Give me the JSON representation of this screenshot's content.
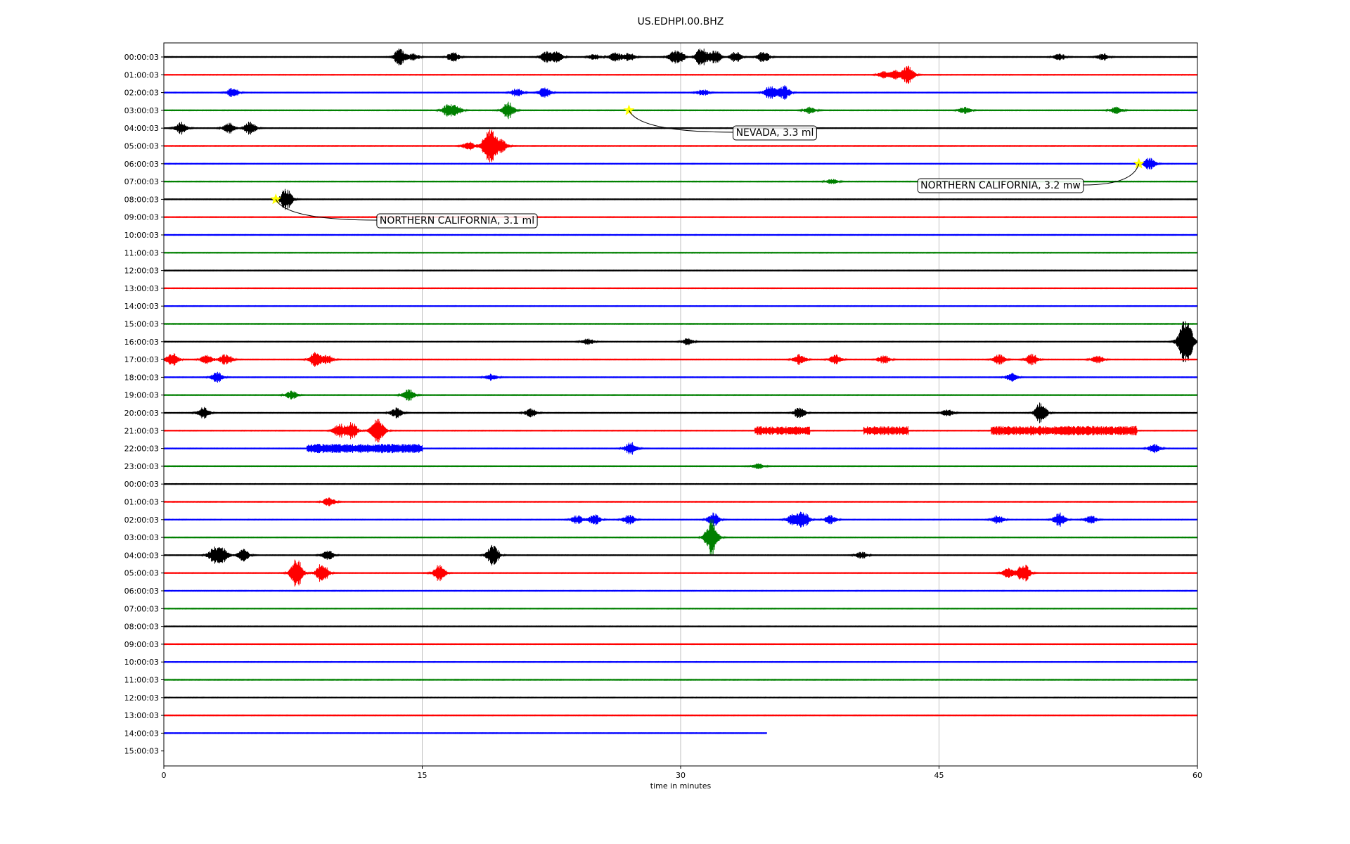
{
  "chart_data": {
    "type": "line",
    "title": "US.EDHPI.00.BHZ",
    "xlabel": "time in minutes",
    "ylabel": "",
    "xlim": [
      0,
      60
    ],
    "xticks": [
      0,
      15,
      30,
      45,
      60
    ],
    "grid": "vertical lines at 15, 30, 45",
    "row_labels": [
      "00:00:03",
      "01:00:03",
      "02:00:03",
      "03:00:03",
      "04:00:03",
      "05:00:03",
      "06:00:03",
      "07:00:03",
      "08:00:03",
      "09:00:03",
      "10:00:03",
      "11:00:03",
      "12:00:03",
      "13:00:03",
      "14:00:03",
      "15:00:03",
      "16:00:03",
      "17:00:03",
      "18:00:03",
      "19:00:03",
      "20:00:03",
      "21:00:03",
      "22:00:03",
      "23:00:03",
      "00:00:03",
      "01:00:03",
      "02:00:03",
      "03:00:03",
      "04:00:03",
      "05:00:03",
      "06:00:03",
      "07:00:03",
      "08:00:03",
      "09:00:03",
      "10:00:03",
      "11:00:03",
      "12:00:03",
      "13:00:03",
      "14:00:03",
      "15:00:03"
    ],
    "trace_colors": [
      "#000000",
      "#ff0000",
      "#0000ff",
      "#008000"
    ],
    "traces": [
      {
        "end_minute": 60,
        "events": [
          [
            13.7,
            1.0
          ],
          [
            14.5,
            0.4
          ],
          [
            16.8,
            0.6
          ],
          [
            22.2,
            0.6
          ],
          [
            22.8,
            0.6
          ],
          [
            25,
            0.4
          ],
          [
            26.2,
            0.6
          ],
          [
            27,
            0.5
          ],
          [
            29.6,
            0.6
          ],
          [
            30,
            0.5
          ],
          [
            31.2,
            1.1
          ],
          [
            32,
            0.8
          ],
          [
            33.2,
            0.6
          ],
          [
            34.8,
            0.7
          ],
          [
            52,
            0.4
          ],
          [
            54.5,
            0.4
          ]
        ]
      },
      {
        "end_minute": 60,
        "events": [
          [
            41.8,
            0.4
          ],
          [
            42.5,
            0.5
          ],
          [
            43.2,
            1.0
          ]
        ]
      },
      {
        "end_minute": 60,
        "events": [
          [
            4,
            0.6
          ],
          [
            20.5,
            0.5
          ],
          [
            22.1,
            0.6
          ],
          [
            31.3,
            0.4
          ],
          [
            35.2,
            0.8
          ],
          [
            36,
            0.8
          ]
        ]
      },
      {
        "end_minute": 60,
        "events": [
          [
            16.5,
            0.7
          ],
          [
            17,
            0.5
          ],
          [
            20,
            1.0
          ],
          [
            37.5,
            0.4
          ],
          [
            46.5,
            0.4
          ],
          [
            55.3,
            0.4
          ]
        ]
      },
      {
        "end_minute": 60,
        "events": [
          [
            1,
            0.7
          ],
          [
            3.8,
            0.6
          ],
          [
            5,
            0.8
          ]
        ]
      },
      {
        "end_minute": 60,
        "events": [
          [
            17.7,
            0.5
          ],
          [
            18.7,
            0.8
          ],
          [
            19,
            1.6
          ],
          [
            19.6,
            0.7
          ]
        ]
      },
      {
        "end_minute": 60,
        "events": [
          [
            57.2,
            0.7
          ]
        ]
      },
      {
        "end_minute": 60,
        "events": [
          [
            38.8,
            0.3
          ]
        ]
      },
      {
        "end_minute": 60,
        "events": [
          [
            7.1,
            1.3
          ]
        ]
      },
      {
        "end_minute": 60,
        "events": []
      },
      {
        "end_minute": 60,
        "events": []
      },
      {
        "end_minute": 60,
        "events": []
      },
      {
        "end_minute": 60,
        "events": []
      },
      {
        "end_minute": 60,
        "events": []
      },
      {
        "end_minute": 60,
        "events": []
      },
      {
        "end_minute": 60,
        "events": []
      },
      {
        "end_minute": 60,
        "events": [
          [
            24.6,
            0.4
          ],
          [
            30.4,
            0.4
          ],
          [
            59.1,
            1.0
          ],
          [
            59.4,
            2.2
          ]
        ]
      },
      {
        "end_minute": 60,
        "events": [
          [
            0.5,
            0.8
          ],
          [
            2.5,
            0.6
          ],
          [
            3.6,
            0.7
          ],
          [
            8.8,
            0.9
          ],
          [
            9.5,
            0.5
          ],
          [
            36.9,
            0.6
          ],
          [
            39,
            0.6
          ],
          [
            41.8,
            0.5
          ],
          [
            48.5,
            0.6
          ],
          [
            50.4,
            0.7
          ],
          [
            54.2,
            0.5
          ]
        ]
      },
      {
        "end_minute": 60,
        "events": [
          [
            3.1,
            0.6
          ],
          [
            19,
            0.4
          ],
          [
            49.2,
            0.5
          ]
        ]
      },
      {
        "end_minute": 60,
        "events": [
          [
            7.4,
            0.5
          ],
          [
            14.2,
            0.7
          ]
        ]
      },
      {
        "end_minute": 60,
        "events": [
          [
            2.3,
            0.7
          ],
          [
            13.5,
            0.6
          ],
          [
            21.3,
            0.5
          ],
          [
            36.9,
            0.6
          ],
          [
            45.5,
            0.4
          ],
          [
            50.9,
            1.2
          ]
        ]
      },
      {
        "end_minute": 60,
        "events": [
          [
            10.2,
            0.8
          ],
          [
            10.9,
            1.0
          ],
          [
            12.5,
            1.0
          ],
          [
            12.3,
            0.7
          ]
        ]
      },
      {
        "end_minute": 60,
        "events": [
          [
            27.1,
            0.8
          ],
          [
            57.5,
            0.5
          ]
        ]
      },
      {
        "end_minute": 60,
        "events": [
          [
            34.5,
            0.3
          ]
        ]
      },
      {
        "end_minute": 60,
        "events": []
      },
      {
        "end_minute": 60,
        "events": [
          [
            9.6,
            0.5
          ]
        ]
      },
      {
        "end_minute": 60,
        "events": [
          [
            24.0,
            0.5
          ],
          [
            25,
            0.6
          ],
          [
            27,
            0.6
          ],
          [
            31.9,
            0.8
          ],
          [
            36.5,
            0.6
          ],
          [
            37.1,
            1.0
          ],
          [
            38.7,
            0.5
          ],
          [
            48.4,
            0.5
          ],
          [
            52,
            0.8
          ],
          [
            53.8,
            0.5
          ]
        ]
      },
      {
        "end_minute": 60,
        "events": [
          [
            31.8,
            2.2
          ]
        ]
      },
      {
        "end_minute": 60,
        "events": [
          [
            2.9,
            0.8
          ],
          [
            3.4,
            0.9
          ],
          [
            4.6,
            0.7
          ],
          [
            9.5,
            0.6
          ],
          [
            19.1,
            1.2
          ],
          [
            40.5,
            0.4
          ]
        ]
      },
      {
        "end_minute": 60,
        "events": [
          [
            7.7,
            1.8
          ],
          [
            9.2,
            1.2
          ],
          [
            16,
            1.1
          ],
          [
            49,
            0.6
          ],
          [
            49.9,
            1.2
          ]
        ]
      },
      {
        "end_minute": 60,
        "events": []
      },
      {
        "end_minute": 60,
        "events": []
      },
      {
        "end_minute": 60,
        "events": []
      },
      {
        "end_minute": 60,
        "events": []
      },
      {
        "end_minute": 60,
        "events": []
      },
      {
        "end_minute": 60,
        "events": []
      },
      {
        "end_minute": 60,
        "events": []
      },
      {
        "end_minute": 60,
        "events": []
      },
      {
        "end_minute": 35,
        "events": []
      },
      {
        "end_minute": 0,
        "events": []
      }
    ],
    "bursts": [
      {
        "trace": 21,
        "start": 34.3,
        "end": 37.5,
        "amp": 0.6
      },
      {
        "trace": 21,
        "start": 40.6,
        "end": 43.2,
        "amp": 0.6
      },
      {
        "trace": 21,
        "start": 48.0,
        "end": 56.5,
        "amp": 0.65
      },
      {
        "trace": 22,
        "start": 8.3,
        "end": 15.0,
        "amp": 0.65
      }
    ],
    "annotations": [
      {
        "text": "NEVADA, 3.3 ml",
        "trace": 3,
        "minute": 27.0
      },
      {
        "text": "NORTHERN CALIFORNIA, 3.2 mw",
        "trace": 6,
        "minute": 56.6
      },
      {
        "text": "NORTHERN CALIFORNIA, 3.1 ml",
        "trace": 8,
        "minute": 6.5
      }
    ],
    "marker_color": "#ffff00"
  }
}
